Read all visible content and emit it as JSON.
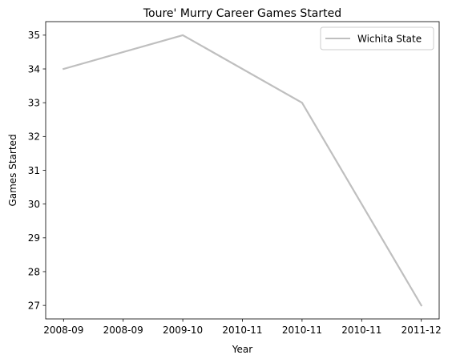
{
  "chart_data": {
    "type": "line",
    "title": "Toure' Murry Career Games Started",
    "xlabel": "Year",
    "ylabel": "Games Started",
    "x_tick_labels": [
      "2008-09",
      "2008-09",
      "2009-10",
      "2010-11",
      "2010-11",
      "2010-11",
      "2011-12"
    ],
    "ylim": [
      26.6,
      35.4
    ],
    "y_ticks": [
      27,
      28,
      29,
      30,
      31,
      32,
      33,
      34,
      35
    ],
    "grid": false,
    "legend_position": "top-right",
    "series": [
      {
        "name": "Wichita State",
        "color": "#bfbfbf",
        "x": [
          "2008-09",
          "2009-10",
          "2010-11",
          "2011-12"
        ],
        "y": [
          34,
          35,
          33,
          27
        ]
      }
    ]
  }
}
